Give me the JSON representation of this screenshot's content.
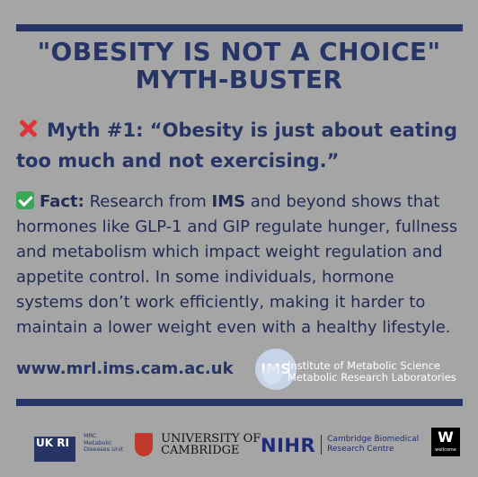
{
  "title": {
    "line1": "\"OBESITY IS NOT A CHOICE\"",
    "line2": "MYTH-BUSTER"
  },
  "myth": {
    "icon": "cross-mark-icon",
    "line1": "Myth #1: “Obesity is just about eating",
    "line2": "too much and not exercising.”"
  },
  "fact": {
    "icon": "check-mark-icon",
    "label": "Fact:",
    "text_part1": " Research from ",
    "ims": "IMS",
    "text_part2": " and beyond shows that hormones like GLP-1 and GIP regulate hunger, fullness and metabolism which impact weight regulation and appetite control. In some individuals, hormone systems don’t work efficiently, making it harder to maintain a lower weight even with a healthy lifestyle."
  },
  "url": "www.mrl.ims.cam.ac.uk",
  "ims_logo": {
    "mark": "IMS",
    "line1": "Institute of Metabolic Science",
    "line2": "Metabolic Research Laboratories"
  },
  "partners": {
    "ukri_mark": "UK RI",
    "mrc_line1": "MRC",
    "mrc_line2": "Metabolic",
    "mrc_line3": "Diseases Unit",
    "cambridge_line1": "UNIVERSITY OF",
    "cambridge_line2": "CAMBRIDGE",
    "nihr": "NIHR",
    "nihr_line1": "Cambridge Biomedical",
    "nihr_line2": "Research Centre",
    "wellcome_mark": "W",
    "wellcome_text": "wellcome"
  },
  "colors": {
    "background": "#a5a5a6",
    "navy": "#263566",
    "cross": "#e0323a",
    "check": "#3aa757"
  }
}
